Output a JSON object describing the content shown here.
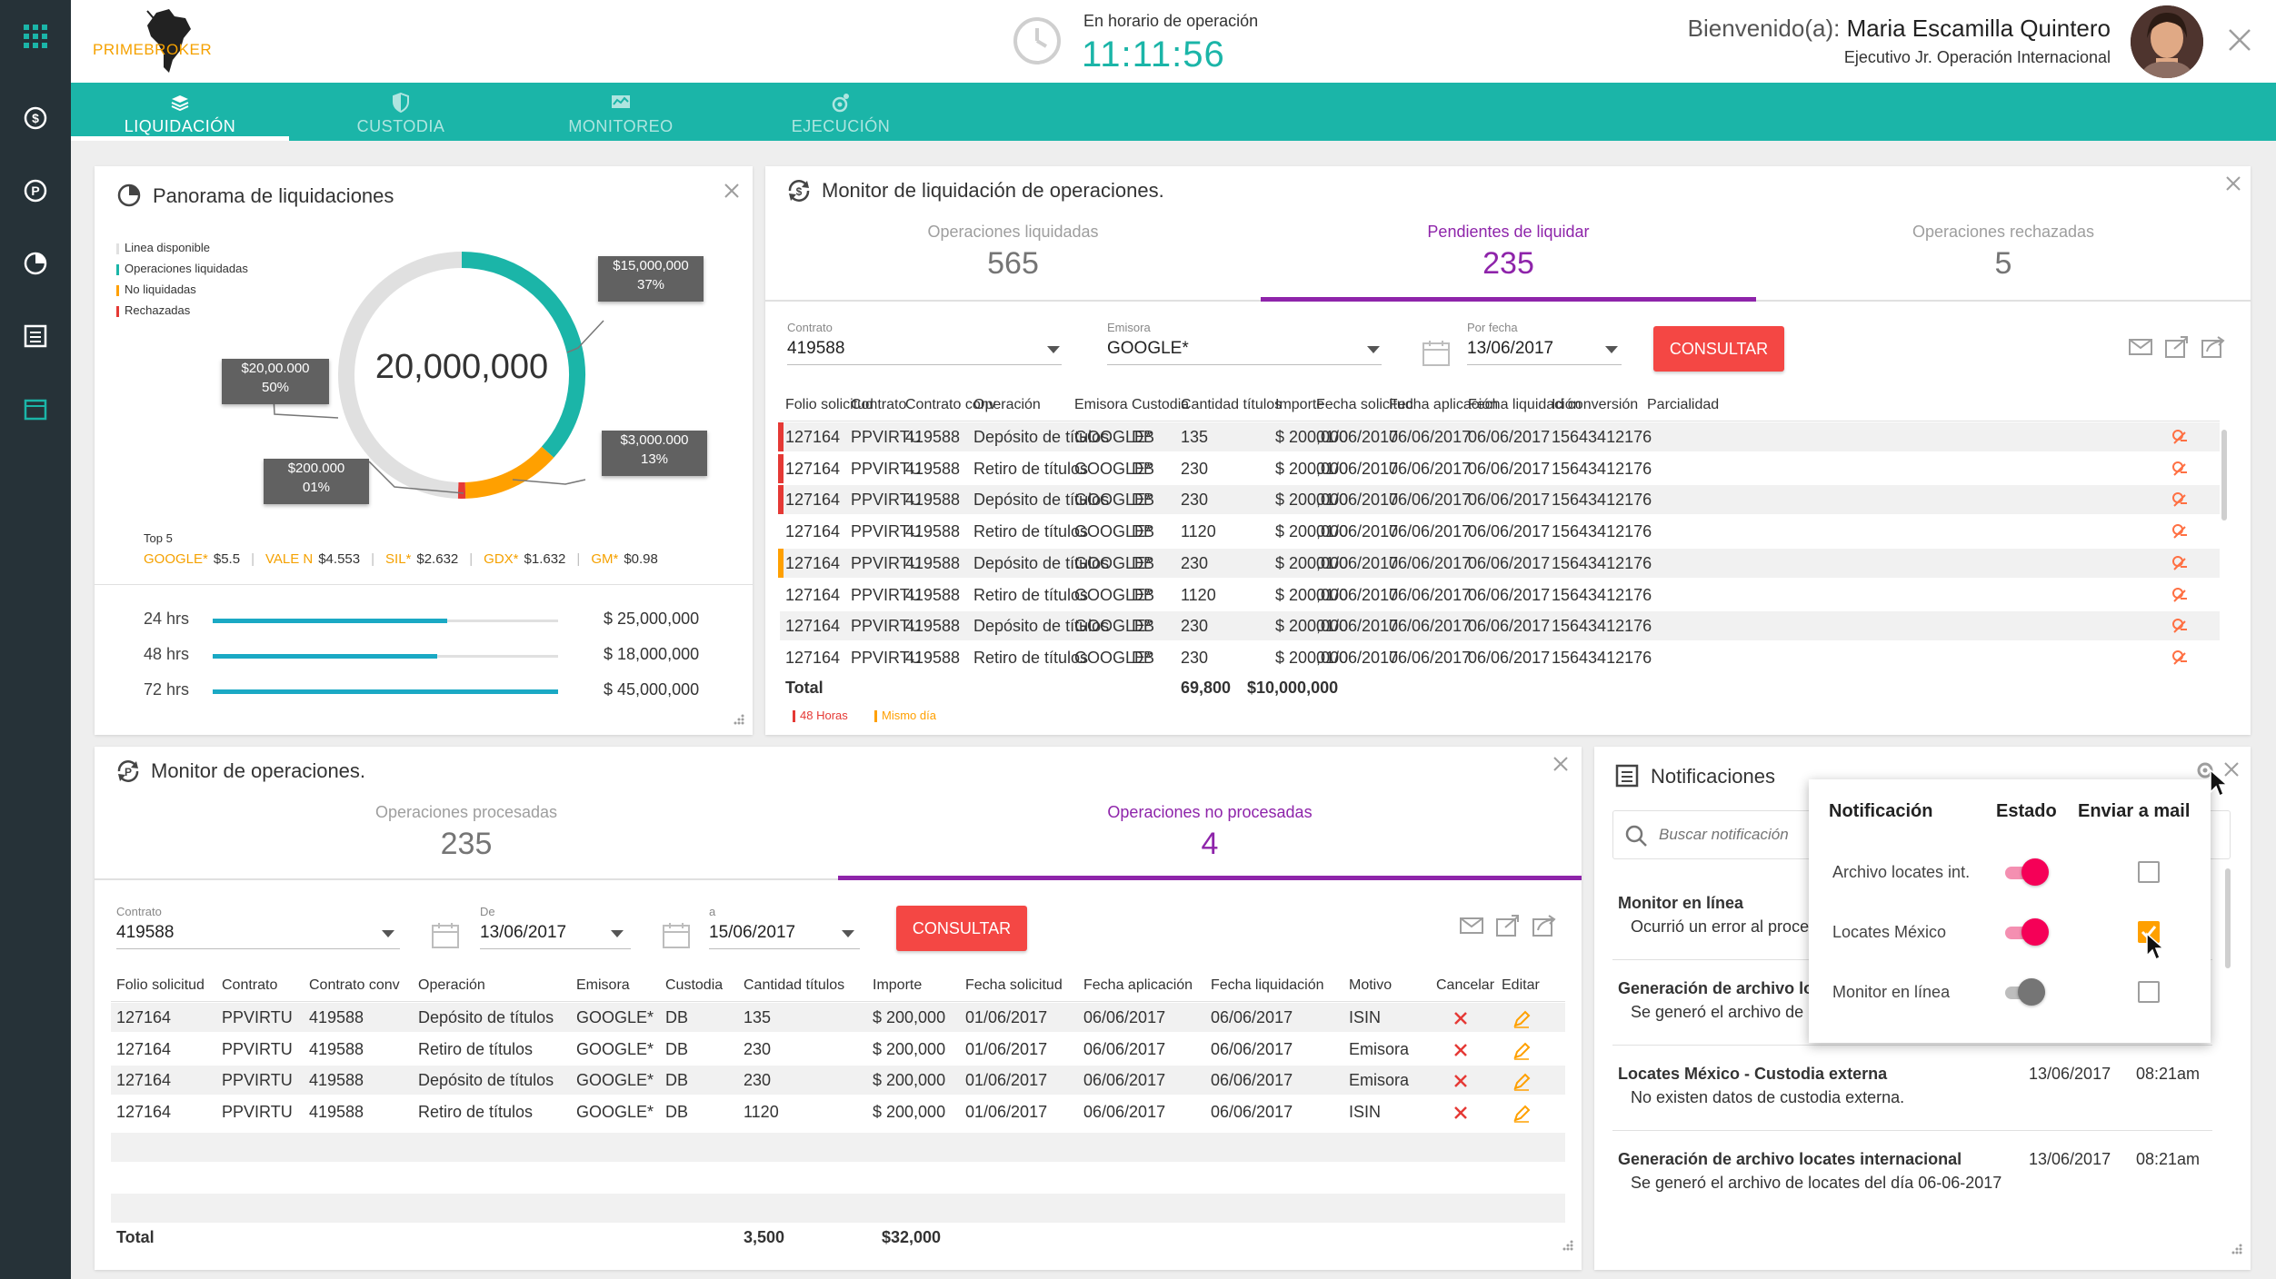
{
  "header": {
    "brand": "PRIMEBROKER",
    "hours_label": "En horario de operación",
    "time": "11:11:56",
    "welcome": "Bienvenido(a):",
    "user_name": "Maria Escamilla Quintero",
    "user_role": "Ejecutivo Jr. Operación Internacional"
  },
  "nav": [
    {
      "label": "LIQUIDACIÓN"
    },
    {
      "label": "CUSTODIA"
    },
    {
      "label": "MONITOREO"
    },
    {
      "label": "EJECUCIÓN"
    }
  ],
  "panorama": {
    "title": "Panorama de liquidaciones",
    "center": "20,000,000",
    "legend": [
      {
        "label": "Linea disponible",
        "color": "#e0e0e0"
      },
      {
        "label": "Operaciones liquidadas",
        "color": "#1bb5a8"
      },
      {
        "label": "No liquidadas",
        "color": "#ffa000"
      },
      {
        "label": "Rechazadas",
        "color": "#e53935"
      }
    ],
    "chart_data": {
      "type": "pie",
      "values": [
        50,
        37,
        13,
        1
      ],
      "labels": [
        "$20,00.000\n50%",
        "$15,000,000\n37%",
        "$3,000.000\n13%",
        "$200.000\n01%"
      ]
    },
    "tags": [
      {
        "l1": "$15,000,000",
        "l2": "37%"
      },
      {
        "l1": "$20,00.000",
        "l2": "50%"
      },
      {
        "l1": "$3,000.000",
        "l2": "13%"
      },
      {
        "l1": "$200.000",
        "l2": "01%"
      }
    ],
    "top_label": "Top 5",
    "top": [
      {
        "name": "GOOGLE*",
        "val": "$5.5"
      },
      {
        "name": "VALE N",
        "val": "$4.553"
      },
      {
        "name": "SIL*",
        "val": "$2.632"
      },
      {
        "name": "GDX*",
        "val": "$1.632"
      },
      {
        "name": "GM*",
        "val": "$0.98"
      }
    ],
    "bars": [
      {
        "label": "24 hrs",
        "value": "$ 25,000,000",
        "fill": 0.68
      },
      {
        "label": "48 hrs",
        "value": "$ 18,000,000",
        "fill": 0.65
      },
      {
        "label": "72 hrs",
        "value": "$ 45,000,000",
        "fill": 1.0
      }
    ]
  },
  "monitor_liq": {
    "title": "Monitor de liquidación de operaciones.",
    "tabs": [
      {
        "label": "Operaciones liquidadas",
        "num": "565"
      },
      {
        "label": "Pendientes de liquidar",
        "num": "235"
      },
      {
        "label": "Operaciones rechazadas",
        "num": "5"
      }
    ],
    "contrato_lbl": "Contrato",
    "contrato": "419588",
    "emisora_lbl": "Emisora",
    "emisora": "GOOGLE*",
    "fecha_lbl": "Por fecha",
    "fecha": "13/06/2017",
    "consultar": "CONSULTAR",
    "headers": [
      "Folio solicitud",
      "Contrato",
      "Contrato conv",
      "Operación",
      "Emisora",
      "Custodia",
      "Cantidad títulos",
      "Importe",
      "Fecha solicitud",
      "Fecha aplicación",
      "Fecha liquidación",
      "Id conversión",
      "Parcialidad"
    ],
    "rows": [
      [
        "127164",
        "PPVIRTU",
        "419588",
        "Depósito de títulos",
        "GOOGLE*",
        "DB",
        "135",
        "$ 200,000",
        "01/06/2017",
        "06/06/2017",
        "06/06/2017",
        "15643412176"
      ],
      [
        "127164",
        "PPVIRTU",
        "419588",
        "Retiro de títulos",
        "GOOGLE*",
        "DB",
        "230",
        "$ 200,000",
        "01/06/2017",
        "06/06/2017",
        "06/06/2017",
        "15643412176"
      ],
      [
        "127164",
        "PPVIRTU",
        "419588",
        "Depósito de títulos",
        "GOOGLE*",
        "DB",
        "230",
        "$ 200,000",
        "01/06/2017",
        "06/06/2017",
        "06/06/2017",
        "15643412176"
      ],
      [
        "127164",
        "PPVIRTU",
        "419588",
        "Retiro de títulos",
        "GOOGLE*",
        "DB",
        "1120",
        "$ 200,000",
        "01/06/2017",
        "06/06/2017",
        "06/06/2017",
        "15643412176"
      ],
      [
        "127164",
        "PPVIRTU",
        "419588",
        "Depósito de títulos",
        "GOOGLE*",
        "DB",
        "230",
        "$ 200,000",
        "01/06/2017",
        "06/06/2017",
        "06/06/2017",
        "15643412176"
      ],
      [
        "127164",
        "PPVIRTU",
        "419588",
        "Retiro de títulos",
        "GOOGLE*",
        "DB",
        "1120",
        "$ 200,000",
        "01/06/2017",
        "06/06/2017",
        "06/06/2017",
        "15643412176"
      ],
      [
        "127164",
        "PPVIRTU",
        "419588",
        "Depósito de títulos",
        "GOOGLE*",
        "DB",
        "230",
        "$ 200,000",
        "01/06/2017",
        "06/06/2017",
        "06/06/2017",
        "15643412176"
      ],
      [
        "127164",
        "PPVIRTU",
        "419588",
        "Retiro de títulos",
        "GOOGLE*",
        "DB",
        "230",
        "$ 200,000",
        "01/06/2017",
        "06/06/2017",
        "06/06/2017",
        "15643412176"
      ]
    ],
    "marks": [
      "#e53935",
      "#e53935",
      "#e53935",
      "",
      "#ffa000",
      "",
      "",
      ""
    ],
    "total_label": "Total",
    "total_cant": "69,800",
    "total_imp": "$10,000,000",
    "legend": [
      {
        "label": "48 Horas",
        "color": "#e53935"
      },
      {
        "label": "Mismo día",
        "color": "#ffa000"
      }
    ]
  },
  "monitor_ops": {
    "title": "Monitor de operaciones.",
    "tabs": [
      {
        "label": "Operaciones procesadas",
        "num": "235"
      },
      {
        "label": "Operaciones no procesadas",
        "num": "4"
      }
    ],
    "contrato_lbl": "Contrato",
    "contrato": "419588",
    "de_lbl": "De",
    "de": "13/06/2017",
    "a_lbl": "a",
    "a": "15/06/2017",
    "consultar": "CONSULTAR",
    "headers": [
      "Folio solicitud",
      "Contrato",
      "Contrato conv",
      "Operación",
      "Emisora",
      "Custodia",
      "Cantidad títulos",
      "Importe",
      "Fecha solicitud",
      "Fecha aplicación",
      "Fecha liquidación",
      "Motivo",
      "Cancelar",
      "Editar"
    ],
    "rows": [
      [
        "127164",
        "PPVIRTU",
        "419588",
        "Depósito de títulos",
        "GOOGLE*",
        "DB",
        "135",
        "$ 200,000",
        "01/06/2017",
        "06/06/2017",
        "06/06/2017",
        "ISIN"
      ],
      [
        "127164",
        "PPVIRTU",
        "419588",
        "Retiro de títulos",
        "GOOGLE*",
        "DB",
        "230",
        "$ 200,000",
        "01/06/2017",
        "06/06/2017",
        "06/06/2017",
        "Emisora"
      ],
      [
        "127164",
        "PPVIRTU",
        "419588",
        "Depósito de títulos",
        "GOOGLE*",
        "DB",
        "230",
        "$ 200,000",
        "01/06/2017",
        "06/06/2017",
        "06/06/2017",
        "Emisora"
      ],
      [
        "127164",
        "PPVIRTU",
        "419588",
        "Retiro de títulos",
        "GOOGLE*",
        "DB",
        "1120",
        "$ 200,000",
        "01/06/2017",
        "06/06/2017",
        "06/06/2017",
        "ISIN"
      ]
    ],
    "total_label": "Total",
    "total_cant": "3,500",
    "total_imp": "$32,000"
  },
  "notif": {
    "title": "Notificaciones",
    "search_placeholder": "Buscar notificación",
    "items": [
      {
        "title": "Monitor en línea",
        "desc": "Ocurrió un error al proce",
        "date": "",
        "time": ""
      },
      {
        "title": "Generación de archivo loc",
        "desc": "Se generó el archivo de",
        "date": "",
        "time": ""
      },
      {
        "title": "Locates México - Custodia externa",
        "desc": "No existen datos de custodia externa.",
        "date": "13/06/2017",
        "time": "08:21am"
      },
      {
        "title": "Generación de archivo locates internacional",
        "desc": "Se generó el archivo de locates del día 06-06-2017",
        "date": "13/06/2017",
        "time": "08:21am"
      }
    ],
    "popup": {
      "h1": "Notificación",
      "h2": "Estado",
      "h3": "Enviar a mail",
      "rows": [
        {
          "label": "Archivo locates int.",
          "on": true,
          "mail": false
        },
        {
          "label": "Locates México",
          "on": true,
          "mail": true
        },
        {
          "label": "Monitor en línea",
          "on": false,
          "mail": false
        }
      ]
    }
  }
}
